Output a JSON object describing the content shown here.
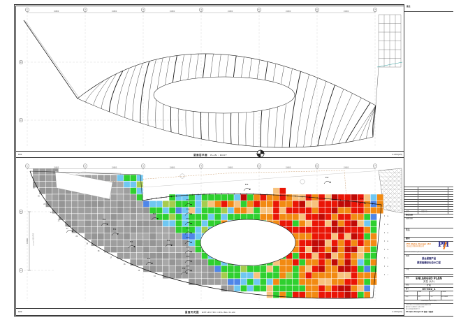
{
  "sheet": {
    "background": "#ffffff",
    "border_color": "#3a3a3a"
  },
  "grid": {
    "col_bubbles": [
      "1",
      "2",
      "3",
      "4",
      "5",
      "6",
      "7"
    ],
    "col_dims": [
      "19800",
      "19800",
      "19800",
      "19800",
      "19800",
      "19800"
    ],
    "row_bubbles": [
      "D",
      "C"
    ],
    "left_dim_bottom": "19800",
    "left_note_bottom": "±0.000 标高分界线"
  },
  "top_view": {
    "caption_cn": "屋面层平面",
    "caption_en": "PLAN : ROOF",
    "scale": "1:200(A3)",
    "ref_label": "R01",
    "rib_count": 40
  },
  "bottom_view": {
    "caption_cn": "屋面天花图",
    "caption_en": "REFLECTED CEILING PLAN",
    "scale": "1:200(A3)",
    "ref_label": "R02",
    "annotation_value": "550",
    "edge_marker_start": 26,
    "right_marker_start": 14
  },
  "heatmap": {
    "palette": {
      "gray": "#9e9e9e",
      "gray2": "#959595",
      "gray3": "#a8a8a8",
      "blue": "#6fc7f2",
      "deepblue": "#4f86e8",
      "green": "#2fd02f",
      "yellowgreen": "#a6cc4e",
      "peach": "#f7c27d",
      "orange": "#f28a12",
      "red": "#ea1506",
      "darkred": "#bf0a06"
    },
    "grout_color": "#ffffff"
  },
  "titleblock": {
    "note_label": "备注",
    "rev_header_date": "日期",
    "rev_header_desc": "修改内容",
    "rev_label": "修改记录",
    "issue_label": "出图记录",
    "client_label": "业主",
    "client_sub": "CLIENT",
    "consultant_label": "顾问",
    "firm": {
      "name": "PH Alpha Design Ltd",
      "name_cn": "栢涛设计顾问有限公司",
      "logo_text": "PH",
      "address": "Unit A, 00/F, Hong Kong"
    },
    "project": {
      "label": "项目",
      "line1": "退台屋面产品",
      "line2": "景观格栅深化设计工程"
    },
    "subproject_label": "子项",
    "title": {
      "label": "图名",
      "line1": "ENLARGED PLAN",
      "line2": "天花 (1/2)"
    },
    "stage_label": "阶段",
    "stage_value": "扩初",
    "dwg_label": "图号",
    "dwg_no": "09-502_1",
    "fields": [
      {
        "label": "制图",
        "value": "MW"
      },
      {
        "label": "比例",
        "value": "1:200"
      },
      {
        "label": "审核",
        "value": "PH"
      },
      {
        "label": "日期",
        "value": "12.2008"
      }
    ],
    "micro_note": "本图纸版权归设计方所有",
    "footer_lines": [
      "未经书面许可不得复制或转载本图纸内容",
      "图中尺寸以毫米计 标高以米计",
      "施工前须核对现场尺寸"
    ],
    "footer_bold": "PH Alpha Design Ltd 保留一切权利"
  }
}
